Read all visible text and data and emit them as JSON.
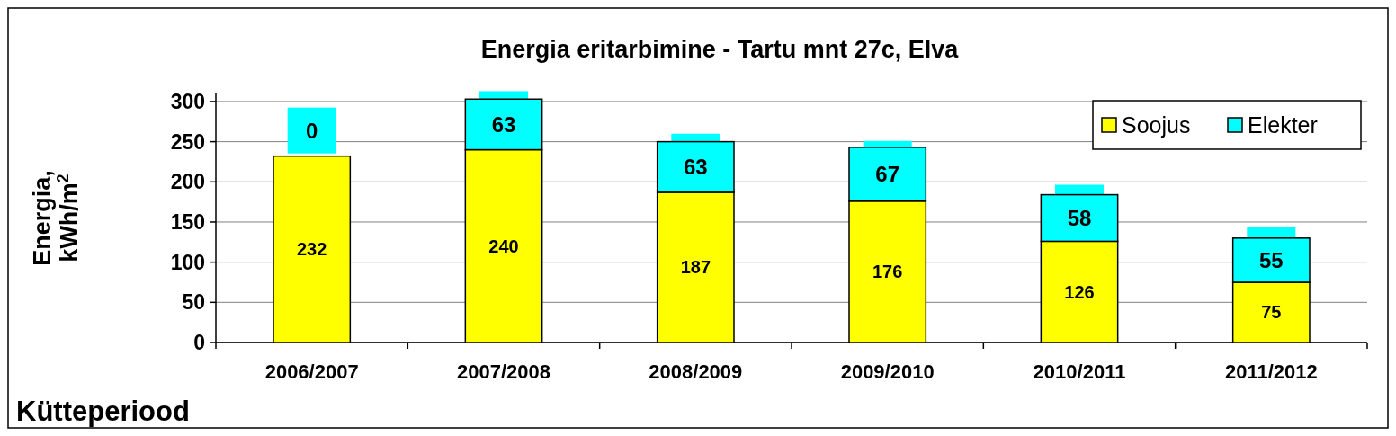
{
  "chart_data": {
    "type": "bar",
    "title": "Energia eritarbimine - Tartu mnt 27c, Elva",
    "xlabel": "Kütteperiood",
    "ylabel": "Energia, kWh/m$^{2}$",
    "categories": [
      "2006/2007",
      "2007/2008",
      "2008/2009",
      "2009/2010",
      "2010/2011",
      "2011/2012"
    ],
    "stacked": true,
    "series": [
      {
        "name": "Soojus",
        "color": "#ffff00",
        "values": [
          232,
          240,
          187,
          176,
          126,
          75
        ]
      },
      {
        "name": "Elekter",
        "color": "#00ffff",
        "values": [
          0,
          63,
          63,
          67,
          58,
          55
        ]
      }
    ],
    "ylim": [
      0,
      310
    ],
    "yticks": [
      0,
      50,
      100,
      150,
      200,
      250,
      300
    ],
    "grid": "y",
    "legend": "top right",
    "data_labels": true
  }
}
